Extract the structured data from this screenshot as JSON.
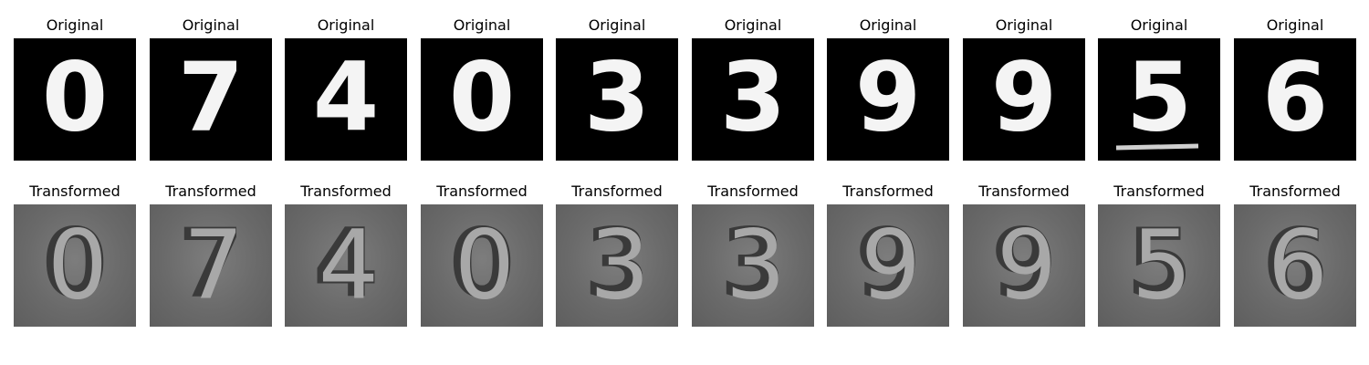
{
  "figure": {
    "row_titles": {
      "original": "Original",
      "transformed": "Transformed"
    },
    "digits": [
      "0",
      "7",
      "4",
      "0",
      "3",
      "3",
      "9",
      "9",
      "5",
      "6"
    ]
  }
}
